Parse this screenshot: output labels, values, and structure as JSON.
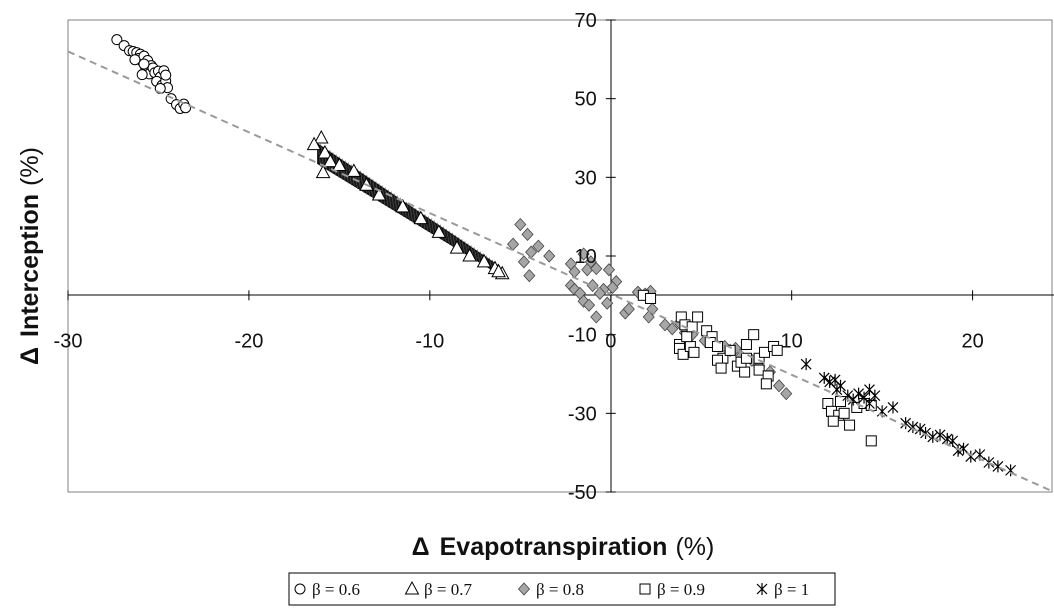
{
  "chart_data": {
    "type": "scatter",
    "title": "",
    "xlabel": {
      "symbol": "Δ",
      "text": "Evapotranspiration",
      "unit": "(%)"
    },
    "ylabel": {
      "symbol": "Δ",
      "text": "Interception",
      "unit": "(%)"
    },
    "xlim": [
      -30,
      24.5
    ],
    "ylim": [
      -50,
      70
    ],
    "xticks": [
      -30,
      -20,
      -10,
      0,
      10,
      20
    ],
    "yticks": [
      -50,
      -30,
      -10,
      10,
      30,
      50,
      70
    ],
    "x_tick_labels": [
      "-30",
      "-20",
      "-10",
      "0",
      "10",
      "20"
    ],
    "y_tick_labels": [
      "-50",
      "-30",
      "-10",
      "10",
      "30",
      "50",
      "70"
    ],
    "grid": false,
    "legend_position": "bottom-center",
    "trendline": {
      "x": [
        -30,
        24.5
      ],
      "y": [
        62,
        -50
      ],
      "color": "#9a9a9a",
      "style": "dashed"
    },
    "series": [
      {
        "name": "β = 0.6",
        "marker": "circle",
        "points": [
          [
            -27.3,
            65.0
          ],
          [
            -26.9,
            63.5
          ],
          [
            -26.6,
            62.2
          ],
          [
            -26.4,
            62.0
          ],
          [
            -26.2,
            61.7
          ],
          [
            -26.0,
            61.3
          ],
          [
            -26.1,
            60.2
          ],
          [
            -25.9,
            59.5
          ],
          [
            -25.8,
            60.8
          ],
          [
            -25.6,
            59.7
          ],
          [
            -25.4,
            58.4
          ],
          [
            -25.7,
            57.4
          ],
          [
            -25.5,
            56.3
          ],
          [
            -25.3,
            57.8
          ],
          [
            -25.2,
            56.6
          ],
          [
            -25.0,
            57.0
          ],
          [
            -24.9,
            55.5
          ],
          [
            -24.7,
            57.1
          ],
          [
            -25.1,
            54.4
          ],
          [
            -24.8,
            53.4
          ],
          [
            -24.6,
            54.5
          ],
          [
            -24.5,
            52.8
          ],
          [
            -24.9,
            52.6
          ],
          [
            -24.3,
            50.0
          ],
          [
            -24.0,
            48.5
          ],
          [
            -23.8,
            47.5
          ],
          [
            -23.6,
            48.6
          ],
          [
            -23.5,
            47.7
          ],
          [
            -25.8,
            58.8
          ],
          [
            -26.3,
            59.9
          ],
          [
            -25.9,
            56.1
          ],
          [
            -24.6,
            56.0
          ]
        ]
      },
      {
        "name": "β = 0.7",
        "marker": "triangle",
        "band": {
          "x_start": -16.2,
          "x_end": -6.2,
          "y_top_start": 38.5,
          "y_top_end": 7.5,
          "y_bot_start": 33.5,
          "y_bot_end": 5.5
        },
        "points": [
          [
            -16.0,
            40.0
          ],
          [
            -16.4,
            38.3
          ],
          [
            -15.8,
            36.2
          ],
          [
            -15.5,
            34.0
          ],
          [
            -15.0,
            33.0
          ],
          [
            -14.2,
            31.5
          ],
          [
            -13.5,
            28.0
          ],
          [
            -12.8,
            25.5
          ],
          [
            -11.5,
            22.5
          ],
          [
            -10.5,
            19.5
          ],
          [
            -9.5,
            16.0
          ],
          [
            -8.5,
            12.0
          ],
          [
            -7.8,
            10.0
          ],
          [
            -7.0,
            8.5
          ],
          [
            -6.4,
            6.8
          ],
          [
            -6.0,
            5.5
          ],
          [
            -6.2,
            6.0
          ],
          [
            -15.9,
            31.2
          ]
        ]
      },
      {
        "name": "β = 0.8",
        "marker": "diamond",
        "points": [
          [
            -5.0,
            18.0
          ],
          [
            -4.6,
            15.5
          ],
          [
            -5.4,
            13.0
          ],
          [
            -4.4,
            11.0
          ],
          [
            -4.0,
            12.5
          ],
          [
            -4.8,
            8.5
          ],
          [
            -3.4,
            10.0
          ],
          [
            -4.5,
            5.0
          ],
          [
            -2.2,
            8.0
          ],
          [
            -1.5,
            10.5
          ],
          [
            -1.1,
            8.5
          ],
          [
            -1.3,
            6.5
          ],
          [
            -2.0,
            6.0
          ],
          [
            -0.8,
            6.8
          ],
          [
            -0.1,
            6.5
          ],
          [
            0.3,
            3.5
          ],
          [
            0.1,
            2.0
          ],
          [
            -0.4,
            1.5
          ],
          [
            -1.0,
            2.5
          ],
          [
            -2.2,
            2.5
          ],
          [
            -2.0,
            1.5
          ],
          [
            -1.7,
            0.5
          ],
          [
            -1.5,
            -1.5
          ],
          [
            -1.2,
            -2.5
          ],
          [
            -0.6,
            0.5
          ],
          [
            -0.2,
            -2.0
          ],
          [
            -0.8,
            -5.5
          ],
          [
            0.8,
            -4.5
          ],
          [
            1.0,
            -3.5
          ],
          [
            1.5,
            0.8
          ],
          [
            1.9,
            0.3
          ],
          [
            2.2,
            1.0
          ],
          [
            2.3,
            -3.5
          ],
          [
            2.1,
            -5.5
          ],
          [
            3.0,
            -7.5
          ],
          [
            3.4,
            -8.5
          ],
          [
            3.8,
            -7.0
          ],
          [
            4.5,
            -10.0
          ],
          [
            5.2,
            -11.5
          ],
          [
            5.8,
            -12.5
          ],
          [
            6.3,
            -13.0
          ],
          [
            6.6,
            -14.0
          ],
          [
            7.2,
            -15.5
          ],
          [
            7.8,
            -16.5
          ],
          [
            8.2,
            -18.0
          ],
          [
            8.8,
            -19.5
          ],
          [
            9.3,
            -23.0
          ],
          [
            9.7,
            -25.0
          ],
          [
            4.1,
            -9.5
          ],
          [
            6.9,
            -13.5
          ]
        ]
      },
      {
        "name": "β = 0.9",
        "marker": "square",
        "points": [
          [
            1.8,
            0.0
          ],
          [
            2.2,
            -0.8
          ],
          [
            3.9,
            -5.5
          ],
          [
            4.1,
            -7.5
          ],
          [
            3.8,
            -12.5
          ],
          [
            3.8,
            -13.5
          ],
          [
            4.0,
            -15.0
          ],
          [
            4.4,
            -13.0
          ],
          [
            4.6,
            -14.5
          ],
          [
            4.2,
            -10.5
          ],
          [
            4.5,
            -8.0
          ],
          [
            4.8,
            -5.5
          ],
          [
            5.3,
            -9.0
          ],
          [
            5.6,
            -10.5
          ],
          [
            5.5,
            -12.0
          ],
          [
            5.9,
            -13.0
          ],
          [
            6.2,
            -16.0
          ],
          [
            6.6,
            -14.0
          ],
          [
            5.9,
            -16.5
          ],
          [
            6.1,
            -18.5
          ],
          [
            7.0,
            -18.0
          ],
          [
            7.4,
            -19.5
          ],
          [
            7.2,
            -17.0
          ],
          [
            7.5,
            -16.0
          ],
          [
            8.2,
            -16.0
          ],
          [
            8.5,
            -14.5
          ],
          [
            8.2,
            -19.0
          ],
          [
            8.7,
            -20.5
          ],
          [
            8.6,
            -22.5
          ],
          [
            9.0,
            -13.0
          ],
          [
            9.2,
            -14.0
          ],
          [
            7.5,
            -12.5
          ],
          [
            7.9,
            -10.0
          ],
          [
            12.0,
            -27.5
          ],
          [
            12.2,
            -29.5
          ],
          [
            12.6,
            -30.5
          ],
          [
            12.3,
            -32.0
          ],
          [
            12.7,
            -27.0
          ],
          [
            12.9,
            -30.0
          ],
          [
            13.2,
            -33.0
          ],
          [
            13.6,
            -28.5
          ],
          [
            14.0,
            -27.5
          ],
          [
            14.4,
            -28.0
          ],
          [
            14.4,
            -37.0
          ]
        ]
      },
      {
        "name": "β = 1",
        "marker": "star",
        "points": [
          [
            10.8,
            -17.5
          ],
          [
            11.8,
            -21.0
          ],
          [
            12.1,
            -22.0
          ],
          [
            12.4,
            -21.5
          ],
          [
            12.5,
            -24.0
          ],
          [
            12.7,
            -23.0
          ],
          [
            13.1,
            -25.5
          ],
          [
            13.4,
            -26.5
          ],
          [
            13.7,
            -25.0
          ],
          [
            14.0,
            -26.0
          ],
          [
            14.3,
            -27.5
          ],
          [
            14.6,
            -25.5
          ],
          [
            14.3,
            -24.0
          ],
          [
            15.0,
            -29.5
          ],
          [
            15.6,
            -28.5
          ],
          [
            16.3,
            -32.5
          ],
          [
            16.7,
            -33.5
          ],
          [
            17.1,
            -34.0
          ],
          [
            17.4,
            -35.0
          ],
          [
            17.8,
            -36.0
          ],
          [
            18.2,
            -35.5
          ],
          [
            18.6,
            -36.5
          ],
          [
            18.9,
            -37.0
          ],
          [
            19.2,
            -39.5
          ],
          [
            19.5,
            -39.0
          ],
          [
            19.9,
            -41.0
          ],
          [
            20.4,
            -40.5
          ],
          [
            20.9,
            -42.5
          ],
          [
            21.4,
            -43.5
          ],
          [
            22.1,
            -44.5
          ]
        ]
      }
    ]
  }
}
